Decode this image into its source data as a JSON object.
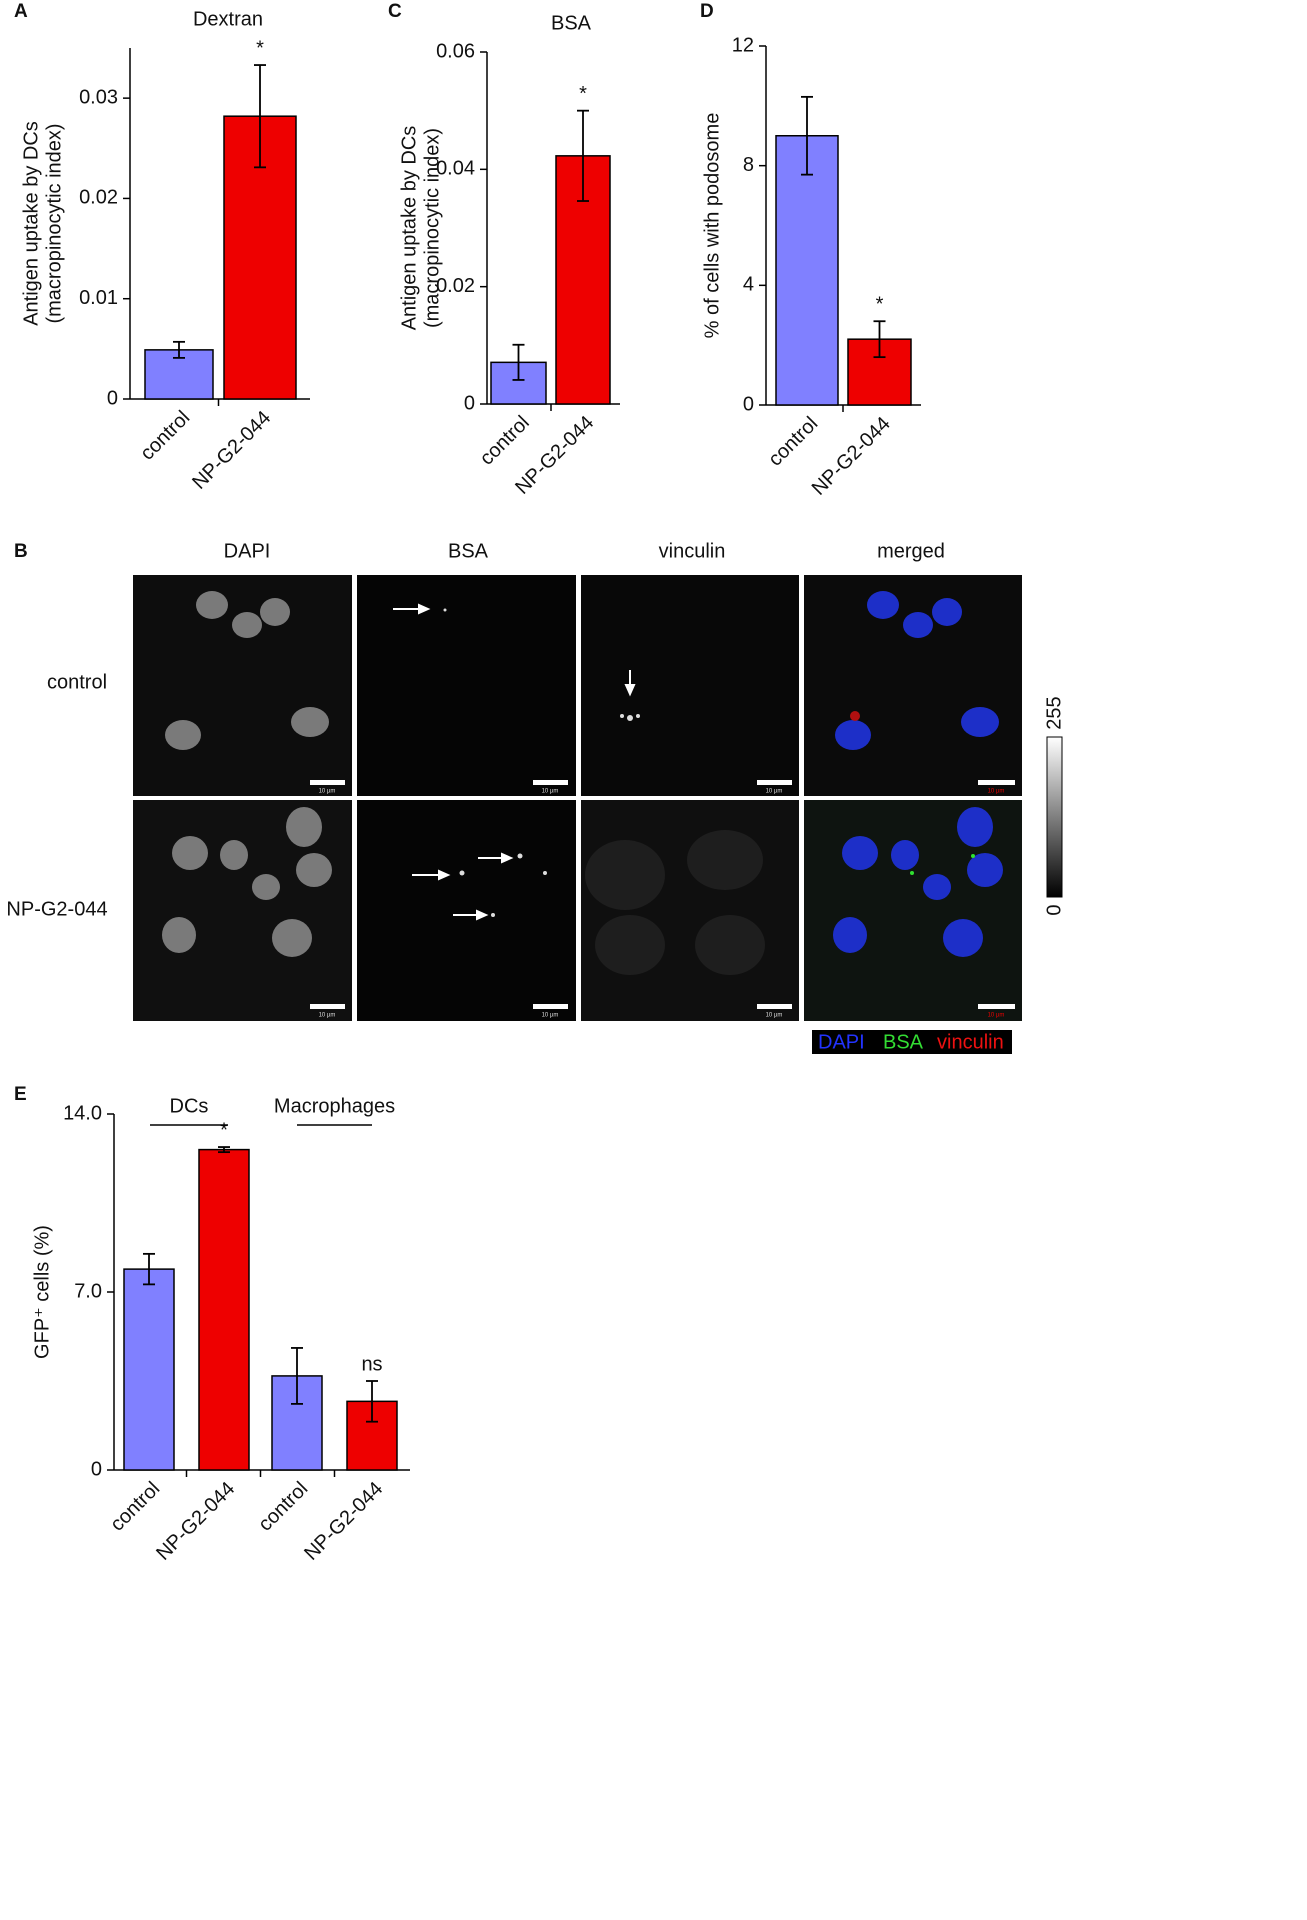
{
  "chart_data": [
    {
      "type": "bar",
      "panel": "A",
      "title": "Dextran",
      "ylabel": [
        "Antigen uptake by DCs",
        "(macropinocytic index)"
      ],
      "categories": [
        "control",
        "NP-G2-044"
      ],
      "values": [
        0.0049,
        0.0282
      ],
      "errors": [
        0.0008,
        0.0051
      ],
      "colors": [
        "#8080ff",
        "#ee0000"
      ],
      "value_annotations": [
        null,
        "*"
      ],
      "ylim": [
        0,
        0.035
      ],
      "yticks": [
        0,
        0.01,
        0.02,
        0.03
      ]
    },
    {
      "type": "bar",
      "panel": "C",
      "title": "BSA",
      "ylabel": [
        "Antigen uptake by DCs",
        "(macropinocytic index)"
      ],
      "categories": [
        "control",
        "NP-G2-044"
      ],
      "values": [
        0.0071,
        0.0423
      ],
      "errors": [
        0.003,
        0.0077
      ],
      "colors": [
        "#8080ff",
        "#ee0000"
      ],
      "value_annotations": [
        null,
        "*"
      ],
      "ylim": [
        0,
        0.06
      ],
      "yticks": [
        0,
        0.02,
        0.04,
        0.06
      ]
    },
    {
      "type": "bar",
      "panel": "D",
      "ylabel": "% of cells with podosome",
      "categories": [
        "control",
        "NP-G2-044"
      ],
      "values": [
        9.0,
        2.2
      ],
      "errors": [
        1.3,
        0.6
      ],
      "colors": [
        "#8080ff",
        "#ee0000"
      ],
      "value_annotations": [
        null,
        "*"
      ],
      "ylim": [
        0,
        12
      ],
      "yticks": [
        0,
        4,
        8,
        12
      ]
    },
    {
      "type": "bar",
      "panel": "E",
      "ylabel": "GFP⁺ cells (%)",
      "groups": [
        "DCs",
        "Macrophages"
      ],
      "categories": [
        "control",
        "NP-G2-044",
        "control",
        "NP-G2-044"
      ],
      "values": [
        7.9,
        12.6,
        3.7,
        2.7
      ],
      "errors": [
        0.6,
        0.1,
        1.1,
        0.8
      ],
      "colors": [
        "#8080ff",
        "#ee0000",
        "#8080ff",
        "#ee0000"
      ],
      "value_annotations": [
        null,
        "*",
        null,
        "ns"
      ],
      "ylim": [
        0,
        14
      ],
      "yticks": [
        0,
        {
          "value": 7,
          "label": "7.0"
        },
        {
          "value": 14,
          "label": "14.0"
        }
      ]
    }
  ],
  "panel_b": {
    "panel": "B",
    "columns": [
      "DAPI",
      "BSA",
      "vinculin",
      "merged"
    ],
    "rows": [
      "control",
      "NP-G2-044"
    ],
    "scale_label": "10 µm",
    "colorbar": {
      "max": "255",
      "min": "0"
    },
    "legend": [
      "DAPI",
      "BSA",
      "vinculin"
    ]
  }
}
